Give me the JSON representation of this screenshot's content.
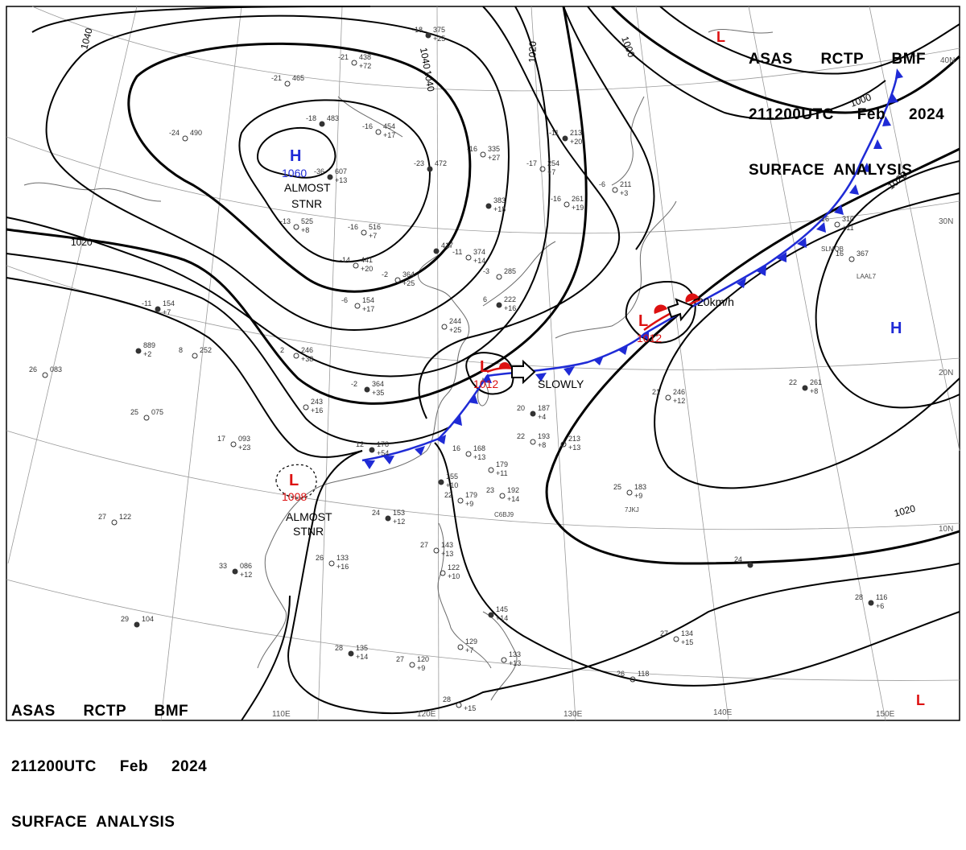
{
  "header": {
    "line1": "ASAS      RCTP      BMF",
    "line2": "211200UTC     Feb     2024",
    "line3": "SURFACE  ANALYSIS"
  },
  "footer": {
    "line1": "ASAS      RCTP      BMF",
    "line2": "211200UTC     Feb     2024",
    "line3": "SURFACE  ANALYSIS"
  },
  "longitudes": [
    "110E",
    "120E",
    "130E",
    "140E",
    "150E"
  ],
  "latitudes": [
    "40N",
    "30N",
    "20N",
    "10N"
  ],
  "isobar_labels": [
    "1040",
    "1040",
    "1040",
    "1020",
    "1000",
    "1000",
    "1020",
    "1020",
    "1020"
  ],
  "systems": {
    "high_north": {
      "symbol": "H",
      "pressure": "1060",
      "note1": "ALMOST",
      "note2": "STNR"
    },
    "high_east": {
      "symbol": "H"
    },
    "low_taiwan": {
      "symbol": "L",
      "pressure": "1012",
      "motion": "SLOWLY"
    },
    "low_japan": {
      "symbol": "L",
      "pressure": "1012",
      "motion": "20km/h"
    },
    "low_vietnam": {
      "symbol": "L",
      "pressure": "1008",
      "note1": "ALMOST",
      "note2": "STNR"
    },
    "low_ne_corner": {
      "symbol": "L"
    },
    "low_se_corner": {
      "symbol": "L"
    }
  },
  "stations": [
    {
      "t": "-18",
      "p": "375",
      "w": "+25"
    },
    {
      "t": "-21",
      "p": "438",
      "w": "+72"
    },
    {
      "t": "-21",
      "p": "465",
      "w": ""
    },
    {
      "t": "-18",
      "p": "483",
      "w": ""
    },
    {
      "t": "-24",
      "p": "490",
      "w": ""
    },
    {
      "t": "-16",
      "p": "454",
      "w": "+17"
    },
    {
      "t": "-23",
      "p": "472",
      "w": ""
    },
    {
      "t": "-16",
      "p": "335",
      "w": "+27"
    },
    {
      "t": "-16",
      "p": "516",
      "w": "+7"
    },
    {
      "t": "-36",
      "p": "607",
      "w": "+13"
    },
    {
      "t": "-13",
      "p": "525",
      "w": "+8"
    },
    {
      "t": "-14",
      "p": "441",
      "w": "+20"
    },
    {
      "t": "",
      "p": "417",
      "w": ""
    },
    {
      "t": "-11",
      "p": "374",
      "w": "+14"
    },
    {
      "t": "-2",
      "p": "364",
      "w": "+25"
    },
    {
      "t": "",
      "p": "383",
      "w": "+18"
    },
    {
      "t": "-16",
      "p": "261",
      "w": "+19"
    },
    {
      "t": "-17",
      "p": "254",
      "w": "+7"
    },
    {
      "t": "-11",
      "p": "213",
      "w": "+20"
    },
    {
      "t": "-6",
      "p": "211",
      "w": "+3"
    },
    {
      "t": "-3",
      "p": "285",
      "w": ""
    },
    {
      "t": "6",
      "p": "222",
      "w": "+16"
    },
    {
      "t": "",
      "p": "244",
      "w": "+25"
    },
    {
      "t": "-6",
      "p": "154",
      "w": "+17"
    },
    {
      "t": "-11",
      "p": "154",
      "w": "+7"
    },
    {
      "t": "8",
      "p": "252",
      "w": ""
    },
    {
      "t": "2",
      "p": "246",
      "w": "+38"
    },
    {
      "t": "-2",
      "p": "364",
      "w": "+35"
    },
    {
      "t": "",
      "p": "243",
      "w": "+16"
    },
    {
      "t": "26",
      "p": "083",
      "w": ""
    },
    {
      "t": "",
      "p": "889",
      "w": "+2"
    },
    {
      "t": "25",
      "p": "075",
      "w": ""
    },
    {
      "t": "17",
      "p": "093",
      "w": "+23"
    },
    {
      "t": "12",
      "p": "178",
      "w": "+54"
    },
    {
      "t": "16",
      "p": "168",
      "w": "+13"
    },
    {
      "t": "",
      "p": "179",
      "w": "+11"
    },
    {
      "t": "20",
      "p": "187",
      "w": "+4"
    },
    {
      "t": "22",
      "p": "193",
      "w": "+8"
    },
    {
      "t": "",
      "p": "213",
      "w": "+13"
    },
    {
      "t": "",
      "p": "155",
      "w": "+10"
    },
    {
      "t": "22",
      "p": "179",
      "w": "+9"
    },
    {
      "t": "23",
      "p": "192",
      "w": "+14"
    },
    {
      "t": "24",
      "p": "153",
      "w": "+12"
    },
    {
      "t": "27",
      "p": "122",
      "w": ""
    },
    {
      "t": "26",
      "p": "133",
      "w": "+16"
    },
    {
      "t": "33",
      "p": "086",
      "w": "+12"
    },
    {
      "t": "27",
      "p": "143",
      "w": "+13"
    },
    {
      "t": "",
      "p": "122",
      "w": "+10"
    },
    {
      "t": "",
      "p": "145",
      "w": "+14"
    },
    {
      "t": "",
      "p": "129",
      "w": "+7"
    },
    {
      "t": "",
      "p": "133",
      "w": "+13"
    },
    {
      "t": "28",
      "p": "135",
      "w": "+14"
    },
    {
      "t": "27",
      "p": "120",
      "w": "+9"
    },
    {
      "t": "28",
      "p": "",
      "w": "+15"
    },
    {
      "t": "29",
      "p": "104",
      "w": ""
    },
    {
      "t": "26",
      "p": "118",
      "w": ""
    },
    {
      "t": "27",
      "p": "134",
      "w": "+15"
    },
    {
      "t": "28",
      "p": "116",
      "w": "+6"
    },
    {
      "t": "25",
      "p": "183",
      "w": "+9"
    },
    {
      "t": "21",
      "p": "246",
      "w": "+12"
    },
    {
      "t": "22",
      "p": "261",
      "w": "+8"
    },
    {
      "t": "16",
      "p": "310",
      "w": "+11"
    },
    {
      "t": "16",
      "p": "367",
      "w": ""
    },
    {
      "t": "24",
      "p": "",
      "w": ""
    }
  ],
  "ship_ids": [
    "SLMQB",
    "LAAL7",
    "7JKJ",
    "C6BJ9"
  ]
}
